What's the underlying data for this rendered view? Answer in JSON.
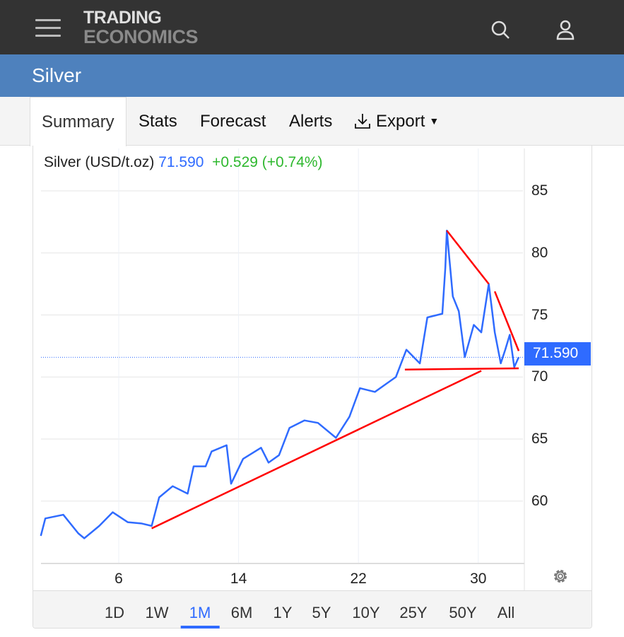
{
  "header": {
    "logo_line1": "TRADING",
    "logo_line2": "ECONOMICS"
  },
  "page_title": "Silver",
  "tabs": [
    {
      "label": "Summary"
    },
    {
      "label": "Stats"
    },
    {
      "label": "Forecast"
    },
    {
      "label": "Alerts"
    },
    {
      "label": "Export"
    }
  ],
  "legend": {
    "name": "Silver (USD/t.oz)",
    "price": "71.590",
    "change": "+0.529 (+0.74%)"
  },
  "price_badge": "71.590",
  "ranges": [
    "1D",
    "1W",
    "1M",
    "6M",
    "1Y",
    "5Y",
    "10Y",
    "25Y",
    "50Y",
    "All"
  ],
  "active_range": "1M",
  "colors": {
    "line": "#2f6bff",
    "trend": "#ff0000",
    "header": "#333333",
    "title_bar": "#4e81bd"
  },
  "chart_data": {
    "type": "line",
    "title": "Silver (USD/t.oz)",
    "ylim": [
      55,
      87
    ],
    "yticks": [
      "85",
      "80",
      "75",
      "70",
      "65",
      "60"
    ],
    "yticks_values": [
      85,
      80,
      75,
      70,
      65,
      60
    ],
    "xlim": [
      0.8,
      33.0
    ],
    "xticks": [
      "6",
      "14",
      "22",
      "30"
    ],
    "xticks_values": [
      6,
      14,
      22,
      30
    ],
    "last_value": 71.59,
    "series": [
      {
        "name": "Silver",
        "x": [
          0.8,
          1.1,
          2.3,
          3.3,
          3.7,
          4.7,
          5.6,
          6.6,
          7.5,
          8.2,
          8.7,
          9.6,
          10.6,
          11.0,
          11.8,
          12.2,
          13.2,
          13.5,
          14.3,
          15.5,
          16.0,
          16.7,
          17.4,
          18.4,
          19.3,
          20.5,
          21.4,
          22.1,
          23.1,
          23.8,
          24.5,
          25.2,
          26.1,
          26.6,
          27.6,
          27.8,
          27.9,
          28.3,
          28.7,
          29.1,
          29.7,
          30.2,
          30.7,
          31.1,
          31.5,
          31.8,
          32.1,
          32.4,
          32.7
        ],
        "y": [
          57.2,
          58.6,
          58.9,
          57.4,
          57.0,
          58.0,
          59.1,
          58.3,
          58.2,
          58.0,
          60.3,
          61.2,
          60.6,
          62.8,
          62.8,
          64.0,
          64.5,
          61.4,
          63.4,
          64.3,
          63.1,
          63.7,
          65.9,
          66.5,
          66.3,
          65.1,
          66.8,
          69.1,
          68.8,
          69.4,
          70.0,
          72.2,
          71.1,
          74.8,
          75.1,
          78.8,
          81.8,
          76.5,
          75.3,
          71.6,
          74.2,
          73.6,
          77.5,
          73.6,
          71.1,
          72.2,
          73.4,
          70.8,
          71.6
        ]
      }
    ],
    "trendlines": [
      {
        "x": [
          8.2,
          30.2
        ],
        "y": [
          57.8,
          70.5
        ]
      },
      {
        "x": [
          25.1,
          32.7
        ],
        "y": [
          70.6,
          70.7
        ]
      },
      {
        "x": [
          27.9,
          30.7
        ],
        "y": [
          81.8,
          77.5
        ]
      },
      {
        "x": [
          31.1,
          32.7
        ],
        "y": [
          76.9,
          72.1
        ]
      }
    ]
  }
}
